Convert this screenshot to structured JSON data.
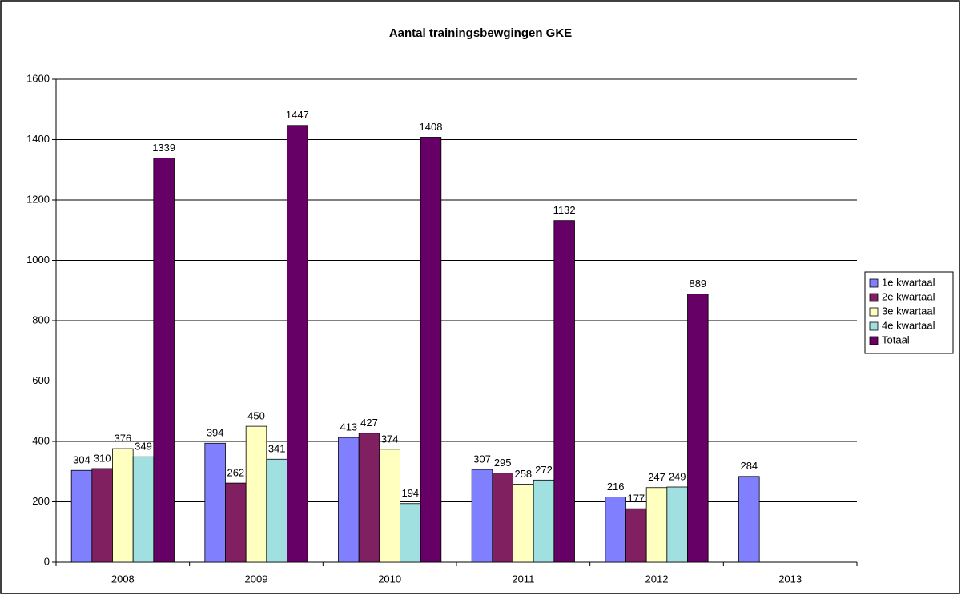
{
  "chart_data": {
    "type": "bar",
    "title": "Aantal trainingsbewgingen GKE",
    "categories": [
      "2008",
      "2009",
      "2010",
      "2011",
      "2012",
      "2013"
    ],
    "series": [
      {
        "name": "1e kwartaal",
        "color": "#8080ff",
        "values": [
          304,
          394,
          413,
          307,
          216,
          284
        ]
      },
      {
        "name": "2e kwartaal",
        "color": "#802060",
        "values": [
          310,
          262,
          427,
          295,
          177,
          null
        ]
      },
      {
        "name": "3e kwartaal",
        "color": "#ffffc0",
        "values": [
          376,
          450,
          374,
          258,
          247,
          null
        ]
      },
      {
        "name": "4e kwartaal",
        "color": "#a0e0e0",
        "values": [
          349,
          341,
          194,
          272,
          249,
          null
        ]
      },
      {
        "name": "Totaal",
        "color": "#660066",
        "values": [
          1339,
          1447,
          1408,
          1132,
          889,
          null
        ]
      }
    ],
    "ylim": [
      0,
      1600
    ],
    "yticks": [
      0,
      200,
      400,
      600,
      800,
      1000,
      1200,
      1400,
      1600
    ],
    "grid": true,
    "legend": "right"
  }
}
